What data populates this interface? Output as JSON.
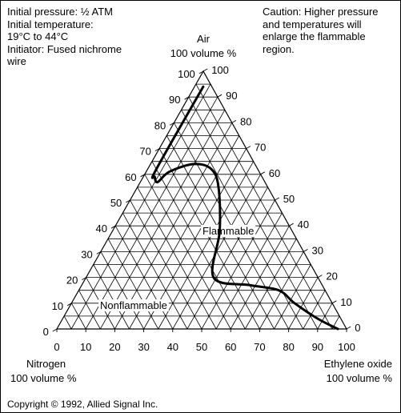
{
  "notes": {
    "conditions": "Initial pressure: ½ ATM\nInitial temperature:\n19°C to 44°C\nInitiator: Fused nichrome\nwire",
    "caution": "Caution: Higher pressure\nand temperatures will\nenlarge the flammable\nregion."
  },
  "copyright": "Copyright © 1992, Allied Signal Inc.",
  "components": {
    "top": {
      "name": "Air",
      "sub": "100 volume %"
    },
    "left": {
      "name": "Nitrogen",
      "sub": "100 volume %"
    },
    "right": {
      "name": "Ethylene oxide",
      "sub": "100 volume %"
    }
  },
  "ticks": [
    "0",
    "10",
    "20",
    "30",
    "40",
    "50",
    "60",
    "70",
    "80",
    "90",
    "100"
  ],
  "region_labels": {
    "flammable": "Flammable",
    "nonflammable": "Nonflammable"
  },
  "colors": {
    "line": "#000000",
    "background": "#ffffff"
  },
  "chart_data": {
    "type": "ternary",
    "axes": [
      "Ethylene oxide",
      "Air",
      "Nitrogen"
    ],
    "grid": true,
    "boundary": {
      "name": "flammability limit",
      "points": [
        {
          "ethylene_oxide": 3,
          "air": 94,
          "nitrogen": 3
        },
        {
          "ethylene_oxide": 3,
          "air": 62,
          "nitrogen": 35
        },
        {
          "ethylene_oxide": 4,
          "air": 59,
          "nitrogen": 37
        },
        {
          "ethylene_oxide": 6,
          "air": 57,
          "nitrogen": 37
        },
        {
          "ethylene_oxide": 8,
          "air": 61,
          "nitrogen": 31
        },
        {
          "ethylene_oxide": 15,
          "air": 64,
          "nitrogen": 21
        },
        {
          "ethylene_oxide": 22,
          "air": 62,
          "nitrogen": 16
        },
        {
          "ethylene_oxide": 28,
          "air": 55,
          "nitrogen": 17
        },
        {
          "ethylene_oxide": 37,
          "air": 38,
          "nitrogen": 25
        },
        {
          "ethylene_oxide": 44,
          "air": 20,
          "nitrogen": 36
        },
        {
          "ethylene_oxide": 58,
          "air": 17,
          "nitrogen": 25
        },
        {
          "ethylene_oxide": 69,
          "air": 15,
          "nitrogen": 16
        },
        {
          "ethylene_oxide": 77,
          "air": 10,
          "nitrogen": 13
        },
        {
          "ethylene_oxide": 88,
          "air": 4,
          "nitrogen": 8
        },
        {
          "ethylene_oxide": 97,
          "air": 0,
          "nitrogen": 3
        }
      ]
    }
  }
}
